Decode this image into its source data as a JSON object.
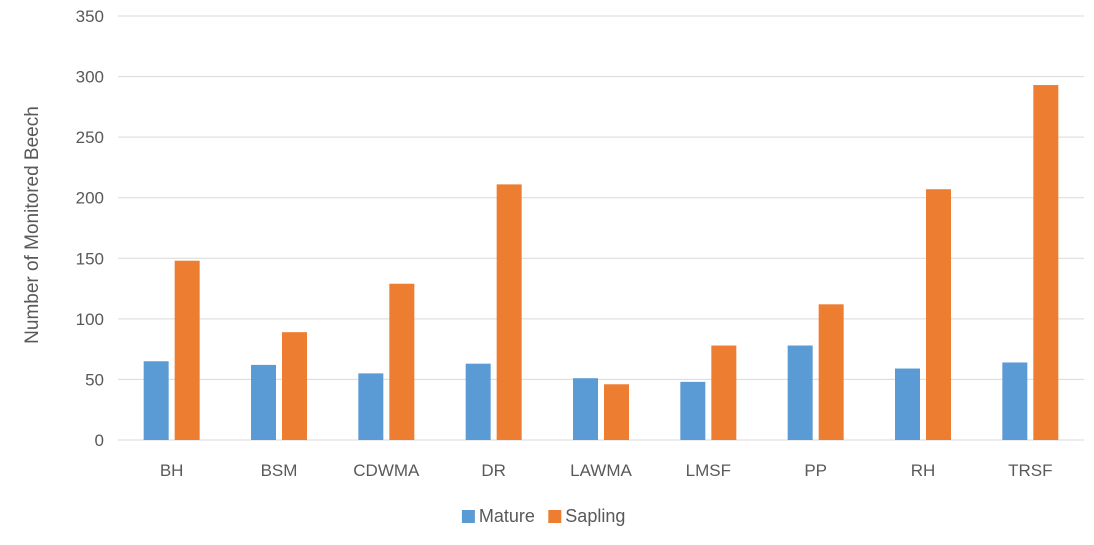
{
  "chart_data": {
    "type": "bar",
    "title": "",
    "xlabel": "",
    "ylabel": "Number of Monitored Beech",
    "ylim": [
      0,
      350
    ],
    "yticks": [
      0,
      50,
      100,
      150,
      200,
      250,
      300,
      350
    ],
    "grid": true,
    "legend_position": "bottom",
    "categories": [
      "BH",
      "BSM",
      "CDWMA",
      "DR",
      "LAWMA",
      "LMSF",
      "PP",
      "RH",
      "TRSF"
    ],
    "series": [
      {
        "name": "Mature",
        "color": "#5B9BD5",
        "values": [
          65,
          62,
          55,
          63,
          51,
          48,
          78,
          59,
          64
        ]
      },
      {
        "name": "Sapling",
        "color": "#ED7D31",
        "values": [
          148,
          89,
          129,
          211,
          46,
          78,
          112,
          207,
          293
        ]
      }
    ]
  }
}
